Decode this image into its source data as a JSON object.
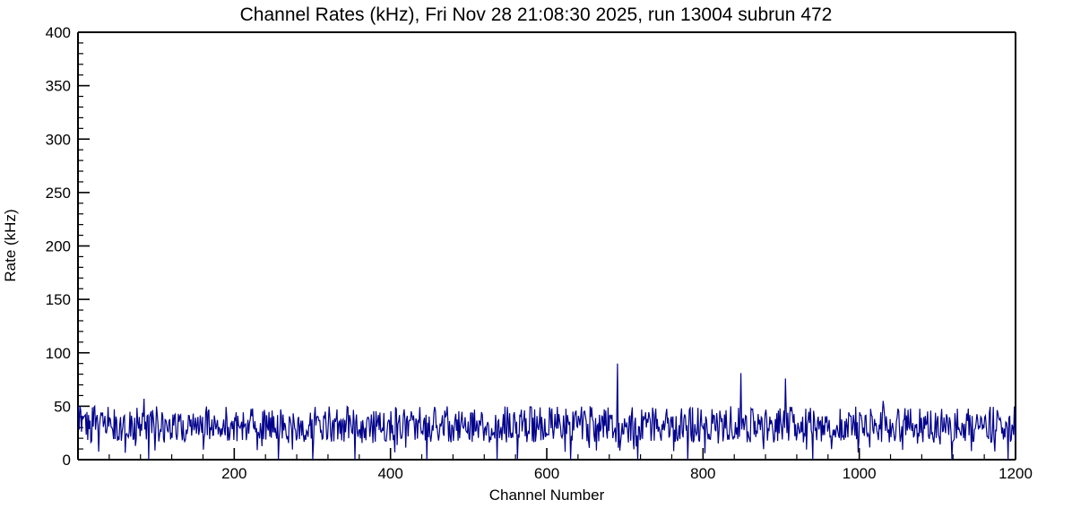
{
  "chart_data": {
    "type": "line",
    "title": "Channel Rates (kHz), Fri Nov 28 21:08:30 2025, run 13004 subrun 472",
    "xlabel": "Channel Number",
    "ylabel": "Rate (kHz)",
    "xlim": [
      0,
      1200
    ],
    "ylim": [
      0,
      400
    ],
    "x_major_ticks": [
      200,
      400,
      600,
      800,
      1000,
      1200
    ],
    "x_minor_step": 40,
    "y_major_ticks": [
      0,
      50,
      100,
      150,
      200,
      250,
      300,
      350,
      400
    ],
    "y_minor_step": 10,
    "grid": false,
    "legend": "none",
    "n_channels": 1200,
    "baseline": {
      "mean": 27,
      "typical_min": 16,
      "typical_max": 50
    },
    "noise_seed": 13004,
    "notable_spikes": [
      {
        "x": 2,
        "y": 50
      },
      {
        "x": 3,
        "y": 46
      },
      {
        "x": 84,
        "y": 57
      },
      {
        "x": 690,
        "y": 90
      },
      {
        "x": 848,
        "y": 81
      },
      {
        "x": 905,
        "y": 76
      },
      {
        "x": 1030,
        "y": 55
      }
    ],
    "zero_dips": [
      90,
      256,
      300,
      354,
      446,
      536,
      562,
      630,
      716,
      780,
      940,
      1118,
      1190
    ],
    "line_color": "#00008b",
    "frame_color": "#000000",
    "background": "#ffffff"
  }
}
